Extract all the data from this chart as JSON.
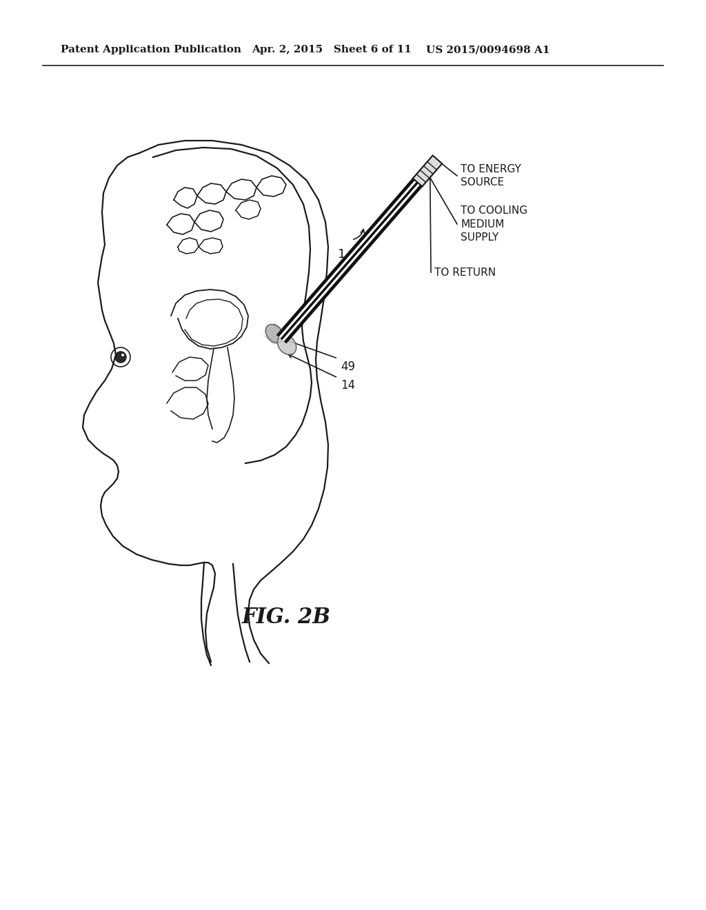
{
  "bg_color": "#ffffff",
  "header_left": "Patent Application Publication",
  "header_mid": "Apr. 2, 2015   Sheet 6 of 11",
  "header_right": "US 2015/0094698 A1",
  "fig_label": "FIG. 2B",
  "label_1": "1",
  "label_49": "49",
  "label_14": "14",
  "label_energy": "TO ENERGY\nSOURCE",
  "label_cooling": "TO COOLING\nMEDIUM\nSUPPLY",
  "label_return": "TO RETURN",
  "line_color": "#1a1a1a",
  "header_fontsize": 11,
  "fig_fontsize": 22
}
